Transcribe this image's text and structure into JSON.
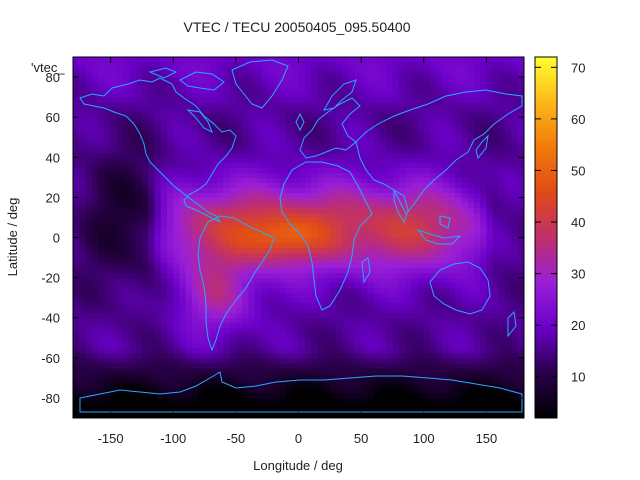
{
  "chart_data": {
    "type": "heatmap",
    "title": "VTEC / TECU 20050405_095.50400",
    "xlabel": "Longitude / deg",
    "ylabel": "Latitude / deg",
    "xlim": [
      -180,
      180
    ],
    "ylim": [
      -90,
      90
    ],
    "x_ticks": [
      -150,
      -100,
      -50,
      0,
      50,
      100,
      150
    ],
    "y_ticks": [
      -80,
      -60,
      -40,
      -20,
      0,
      20,
      40,
      60,
      80
    ],
    "x_tick_labels": [
      "-150",
      "-100",
      "-50",
      "0",
      "50",
      "100",
      "150"
    ],
    "y_tick_labels": [
      "-80",
      "-60",
      "-40",
      "-20",
      "0",
      "20",
      "40",
      "60",
      "80"
    ],
    "colorbar": {
      "range": [
        2,
        72
      ],
      "ticks": [
        10,
        20,
        30,
        40,
        50,
        60,
        70
      ],
      "tick_labels": [
        "10",
        "20",
        "30",
        "40",
        "50",
        "60",
        "70"
      ],
      "colormap": [
        "#000000",
        "#2a004a",
        "#6a00c8",
        "#9a1fd8",
        "#c0306a",
        "#e04a18",
        "#f27a0a",
        "#fcb81a",
        "#ffff30"
      ]
    },
    "series_label": "'vtec_",
    "grid": false,
    "features": {
      "equatorial_crest": {
        "lon": [
          -95,
          130
        ],
        "peak_lon": -15,
        "peak_lat": 0,
        "peak_value": 52
      },
      "southern_lobe": {
        "lon": [
          -95,
          -35
        ],
        "lat": [
          -45,
          -15
        ],
        "value": 42
      }
    }
  },
  "colors": {
    "coastline": "#2aa8ff",
    "axis": "#000000"
  }
}
